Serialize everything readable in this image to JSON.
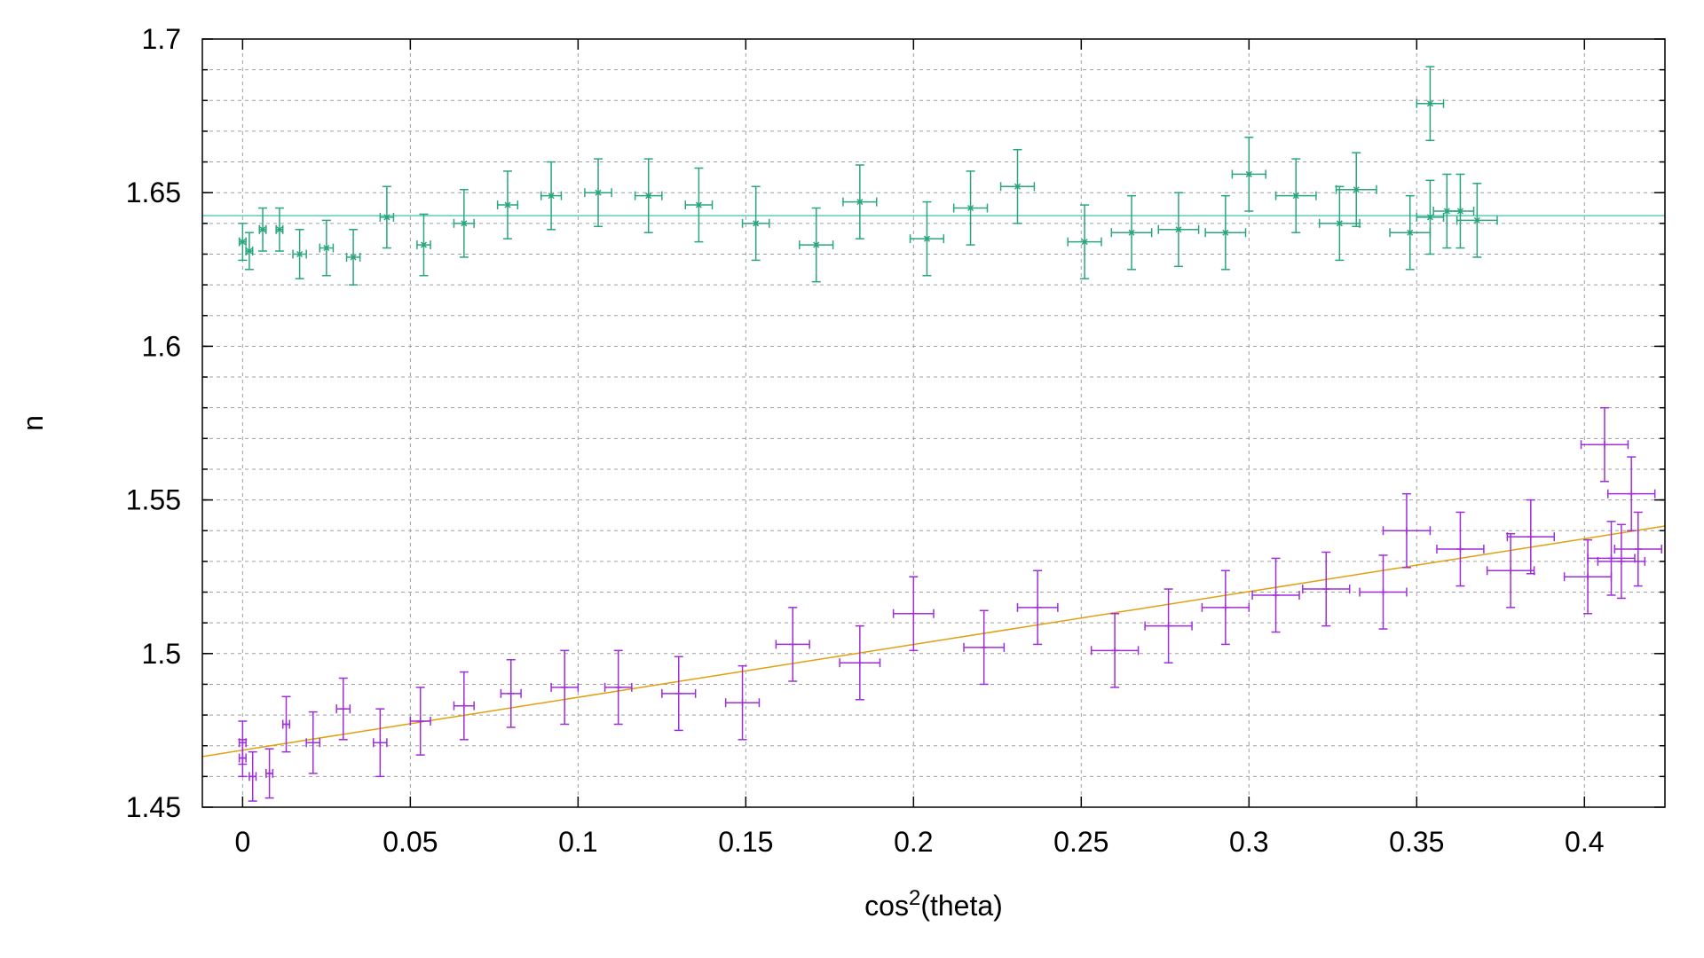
{
  "chart_data": {
    "type": "scatter",
    "xlabel_base": "cos",
    "xlabel_sup": "2",
    "xlabel_rest": "(theta)",
    "ylabel": "n",
    "xlim": [
      -0.012,
      0.424
    ],
    "ylim": [
      1.45,
      1.7
    ],
    "xticks": [
      0,
      0.05,
      0.1,
      0.15,
      0.2,
      0.25,
      0.3,
      0.35,
      0.4
    ],
    "xtick_labels": [
      "0",
      "0.05",
      "0.1",
      "0.15",
      "0.2",
      "0.25",
      "0.3",
      "0.35",
      "0.4"
    ],
    "yticks": [
      1.45,
      1.5,
      1.55,
      1.6,
      1.65,
      1.7
    ],
    "ytick_labels": [
      "1.45",
      "1.5",
      "1.55",
      "1.6",
      "1.65",
      "1.7"
    ],
    "minor_ystep": 0.01,
    "grid": true,
    "series": [
      {
        "color": "#2aa67e",
        "marker": "x",
        "points": [
          {
            "x": 0.0,
            "y": 1.634,
            "xerr": 0.001,
            "yerr": 0.006
          },
          {
            "x": 0.002,
            "y": 1.631,
            "xerr": 0.001,
            "yerr": 0.006
          },
          {
            "x": 0.006,
            "y": 1.638,
            "xerr": 0.001,
            "yerr": 0.007
          },
          {
            "x": 0.011,
            "y": 1.638,
            "xerr": 0.001,
            "yerr": 0.007
          },
          {
            "x": 0.017,
            "y": 1.63,
            "xerr": 0.002,
            "yerr": 0.008
          },
          {
            "x": 0.025,
            "y": 1.632,
            "xerr": 0.002,
            "yerr": 0.009
          },
          {
            "x": 0.033,
            "y": 1.629,
            "xerr": 0.002,
            "yerr": 0.009
          },
          {
            "x": 0.043,
            "y": 1.642,
            "xerr": 0.002,
            "yerr": 0.01
          },
          {
            "x": 0.054,
            "y": 1.633,
            "xerr": 0.002,
            "yerr": 0.01
          },
          {
            "x": 0.066,
            "y": 1.64,
            "xerr": 0.003,
            "yerr": 0.011
          },
          {
            "x": 0.079,
            "y": 1.646,
            "xerr": 0.003,
            "yerr": 0.011
          },
          {
            "x": 0.092,
            "y": 1.649,
            "xerr": 0.003,
            "yerr": 0.011
          },
          {
            "x": 0.106,
            "y": 1.65,
            "xerr": 0.004,
            "yerr": 0.011
          },
          {
            "x": 0.121,
            "y": 1.649,
            "xerr": 0.004,
            "yerr": 0.012
          },
          {
            "x": 0.136,
            "y": 1.646,
            "xerr": 0.004,
            "yerr": 0.012
          },
          {
            "x": 0.153,
            "y": 1.64,
            "xerr": 0.004,
            "yerr": 0.012
          },
          {
            "x": 0.171,
            "y": 1.633,
            "xerr": 0.005,
            "yerr": 0.012
          },
          {
            "x": 0.184,
            "y": 1.647,
            "xerr": 0.005,
            "yerr": 0.012
          },
          {
            "x": 0.204,
            "y": 1.635,
            "xerr": 0.005,
            "yerr": 0.012
          },
          {
            "x": 0.217,
            "y": 1.645,
            "xerr": 0.005,
            "yerr": 0.012
          },
          {
            "x": 0.231,
            "y": 1.652,
            "xerr": 0.005,
            "yerr": 0.012
          },
          {
            "x": 0.251,
            "y": 1.634,
            "xerr": 0.005,
            "yerr": 0.012
          },
          {
            "x": 0.265,
            "y": 1.637,
            "xerr": 0.006,
            "yerr": 0.012
          },
          {
            "x": 0.279,
            "y": 1.638,
            "xerr": 0.006,
            "yerr": 0.012
          },
          {
            "x": 0.293,
            "y": 1.637,
            "xerr": 0.006,
            "yerr": 0.012
          },
          {
            "x": 0.3,
            "y": 1.656,
            "xerr": 0.005,
            "yerr": 0.012
          },
          {
            "x": 0.314,
            "y": 1.649,
            "xerr": 0.006,
            "yerr": 0.012
          },
          {
            "x": 0.327,
            "y": 1.64,
            "xerr": 0.006,
            "yerr": 0.012
          },
          {
            "x": 0.332,
            "y": 1.651,
            "xerr": 0.006,
            "yerr": 0.012
          },
          {
            "x": 0.348,
            "y": 1.637,
            "xerr": 0.006,
            "yerr": 0.012
          },
          {
            "x": 0.354,
            "y": 1.679,
            "xerr": 0.004,
            "yerr": 0.012
          },
          {
            "x": 0.354,
            "y": 1.642,
            "xerr": 0.004,
            "yerr": 0.012
          },
          {
            "x": 0.359,
            "y": 1.644,
            "xerr": 0.004,
            "yerr": 0.012
          },
          {
            "x": 0.363,
            "y": 1.644,
            "xerr": 0.004,
            "yerr": 0.012
          },
          {
            "x": 0.368,
            "y": 1.641,
            "xerr": 0.006,
            "yerr": 0.012
          }
        ]
      },
      {
        "color": "#9e2ed8",
        "marker": "+",
        "points": [
          {
            "x": 0.0,
            "y": 1.466,
            "xerr": 0.001,
            "yerr": 0.006
          },
          {
            "x": 0.0,
            "y": 1.471,
            "xerr": 0.001,
            "yerr": 0.007
          },
          {
            "x": 0.003,
            "y": 1.46,
            "xerr": 0.001,
            "yerr": 0.008
          },
          {
            "x": 0.008,
            "y": 1.461,
            "xerr": 0.001,
            "yerr": 0.008
          },
          {
            "x": 0.013,
            "y": 1.477,
            "xerr": 0.001,
            "yerr": 0.009
          },
          {
            "x": 0.021,
            "y": 1.471,
            "xerr": 0.002,
            "yerr": 0.01
          },
          {
            "x": 0.03,
            "y": 1.482,
            "xerr": 0.002,
            "yerr": 0.01
          },
          {
            "x": 0.041,
            "y": 1.471,
            "xerr": 0.002,
            "yerr": 0.011
          },
          {
            "x": 0.053,
            "y": 1.478,
            "xerr": 0.003,
            "yerr": 0.011
          },
          {
            "x": 0.066,
            "y": 1.483,
            "xerr": 0.003,
            "yerr": 0.011
          },
          {
            "x": 0.08,
            "y": 1.487,
            "xerr": 0.003,
            "yerr": 0.011
          },
          {
            "x": 0.096,
            "y": 1.489,
            "xerr": 0.004,
            "yerr": 0.012
          },
          {
            "x": 0.112,
            "y": 1.489,
            "xerr": 0.004,
            "yerr": 0.012
          },
          {
            "x": 0.13,
            "y": 1.487,
            "xerr": 0.005,
            "yerr": 0.012
          },
          {
            "x": 0.149,
            "y": 1.484,
            "xerr": 0.005,
            "yerr": 0.012
          },
          {
            "x": 0.164,
            "y": 1.503,
            "xerr": 0.005,
            "yerr": 0.012
          },
          {
            "x": 0.184,
            "y": 1.497,
            "xerr": 0.006,
            "yerr": 0.012
          },
          {
            "x": 0.2,
            "y": 1.513,
            "xerr": 0.006,
            "yerr": 0.012
          },
          {
            "x": 0.221,
            "y": 1.502,
            "xerr": 0.006,
            "yerr": 0.012
          },
          {
            "x": 0.237,
            "y": 1.515,
            "xerr": 0.006,
            "yerr": 0.012
          },
          {
            "x": 0.26,
            "y": 1.501,
            "xerr": 0.007,
            "yerr": 0.012
          },
          {
            "x": 0.276,
            "y": 1.509,
            "xerr": 0.007,
            "yerr": 0.012
          },
          {
            "x": 0.293,
            "y": 1.515,
            "xerr": 0.007,
            "yerr": 0.012
          },
          {
            "x": 0.308,
            "y": 1.519,
            "xerr": 0.007,
            "yerr": 0.012
          },
          {
            "x": 0.323,
            "y": 1.521,
            "xerr": 0.007,
            "yerr": 0.012
          },
          {
            "x": 0.34,
            "y": 1.52,
            "xerr": 0.007,
            "yerr": 0.012
          },
          {
            "x": 0.347,
            "y": 1.54,
            "xerr": 0.007,
            "yerr": 0.012
          },
          {
            "x": 0.363,
            "y": 1.534,
            "xerr": 0.007,
            "yerr": 0.012
          },
          {
            "x": 0.378,
            "y": 1.527,
            "xerr": 0.007,
            "yerr": 0.012
          },
          {
            "x": 0.384,
            "y": 1.538,
            "xerr": 0.007,
            "yerr": 0.012
          },
          {
            "x": 0.401,
            "y": 1.525,
            "xerr": 0.007,
            "yerr": 0.012
          },
          {
            "x": 0.406,
            "y": 1.568,
            "xerr": 0.007,
            "yerr": 0.012
          },
          {
            "x": 0.408,
            "y": 1.531,
            "xerr": 0.007,
            "yerr": 0.012
          },
          {
            "x": 0.411,
            "y": 1.53,
            "xerr": 0.007,
            "yerr": 0.012
          },
          {
            "x": 0.414,
            "y": 1.552,
            "xerr": 0.007,
            "yerr": 0.012
          },
          {
            "x": 0.416,
            "y": 1.534,
            "xerr": 0.007,
            "yerr": 0.012
          }
        ]
      }
    ],
    "fit_lines": [
      {
        "color": "#5fc9c0",
        "x": [
          -0.012,
          0.424
        ],
        "y": [
          1.6425,
          1.6425
        ]
      },
      {
        "color": "#e0a010",
        "x": [
          -0.012,
          0.424
        ],
        "y": [
          1.4665,
          1.5415
        ]
      }
    ]
  }
}
